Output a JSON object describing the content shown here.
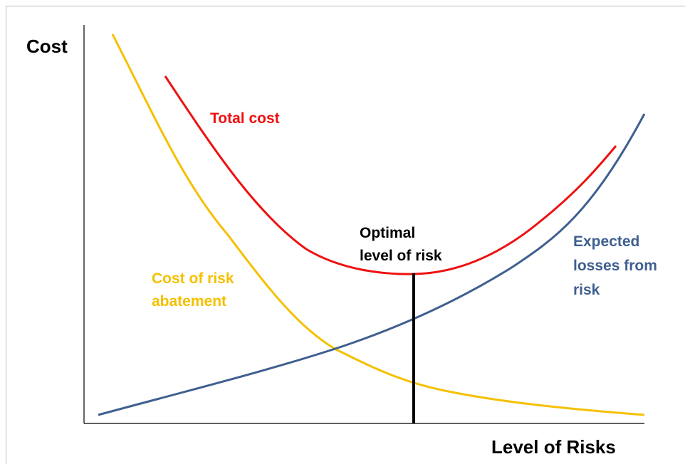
{
  "axes": {
    "y_label": "Cost",
    "x_label": "Level of Risks"
  },
  "labels": {
    "total_cost": [
      "Total cost"
    ],
    "abatement": [
      "Cost of risk",
      "abatement"
    ],
    "optimal": [
      "Optimal",
      "level of risk"
    ],
    "expected_losses": [
      "Expected",
      "losses from",
      "risk"
    ]
  }
}
